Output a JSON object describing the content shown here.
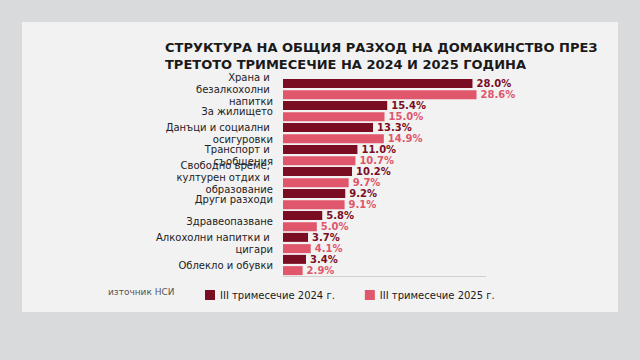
{
  "chart_data": {
    "type": "bar",
    "title": "СТРУКТУРА НА ОБЩИЯ РАЗХОД НА ДОМАКИНСТВО ПРЕЗ\nТРЕТОТО ТРИМЕСЕЧИЕ НА 2024 И 2025 ГОДИНА",
    "source": "източник НСИ",
    "orientation": "horizontal",
    "categories": [
      "Храна и безалкохолни напитки",
      "За жилището",
      "Данъци и социални осигуровки",
      "Транспорт и съобщения",
      "Свободно време, културен отдих и образование",
      "Други разходи",
      "Здравеопазване",
      "Алкохолни напитки и цигари",
      "Облекло и обувки"
    ],
    "series": [
      {
        "name": "III тримесечие 2024 г.",
        "color": "#7b0d22",
        "values": [
          28.0,
          15.4,
          13.3,
          11.0,
          10.2,
          9.2,
          5.8,
          3.7,
          3.4
        ],
        "value_labels": [
          "28.0%",
          "15.4%",
          "13.3%",
          "11.0%",
          "10.2%",
          "9.2%",
          "5.8%",
          "3.7%",
          "3.4%"
        ]
      },
      {
        "name": "III тримесечие 2025 г.",
        "color": "#e0566a",
        "values": [
          28.6,
          15.0,
          14.9,
          10.7,
          9.7,
          9.1,
          5.0,
          4.1,
          2.9
        ],
        "value_labels": [
          "28.6%",
          "15.0%",
          "14.9%",
          "10.7%",
          "9.7%",
          "9.1%",
          "5.0%",
          "4.1%",
          "2.9%"
        ]
      }
    ],
    "xlim": [
      0,
      30
    ],
    "tick_labels": "y",
    "data_labels": true,
    "grid": false,
    "legend": "bottom"
  }
}
